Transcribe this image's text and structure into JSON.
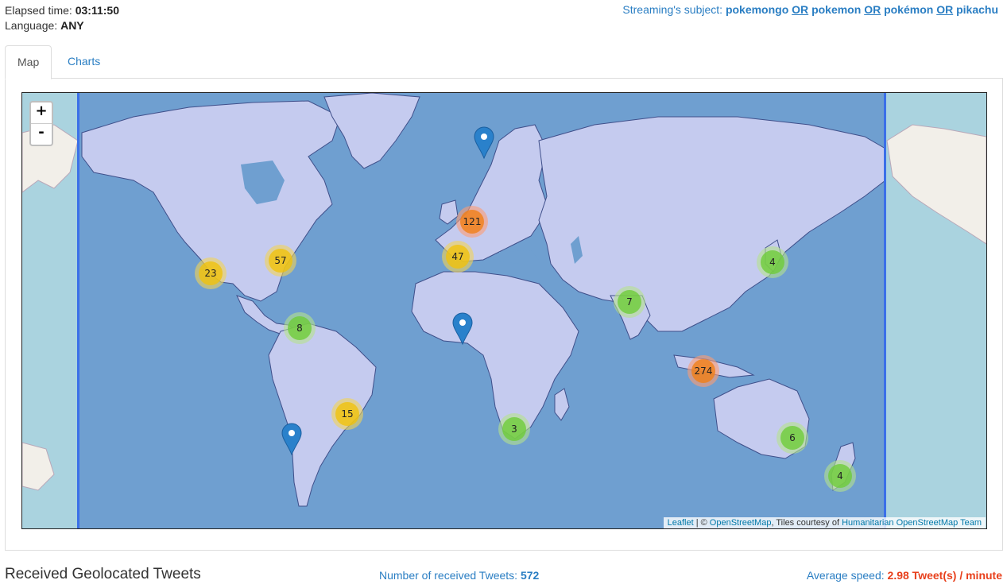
{
  "header": {
    "elapsed_label": "Elapsed time:",
    "elapsed_value": "03:11:50",
    "language_label": "Language:",
    "language_value": "ANY",
    "subject_label": "Streaming's subject:",
    "subject_terms": [
      "pokemongo",
      "pokemon",
      "pokémon",
      "pikachu"
    ],
    "subject_or": "OR"
  },
  "tabs": {
    "map": "Map",
    "charts": "Charts"
  },
  "map": {
    "zoom_in": "+",
    "zoom_out": "-",
    "attribution": {
      "leaflet": "Leaflet",
      "sep": "| ©",
      "osm": "OpenStreetMap",
      "tiles": ", Tiles courtesy of",
      "hot": "Humanitarian OpenStreetMap Team"
    },
    "clusters": [
      {
        "count": "121",
        "level": "large"
      },
      {
        "count": "57",
        "level": "medium"
      },
      {
        "count": "47",
        "level": "medium"
      },
      {
        "count": "23",
        "level": "medium"
      },
      {
        "count": "8",
        "level": "small"
      },
      {
        "count": "7",
        "level": "small"
      },
      {
        "count": "4",
        "level": "small"
      },
      {
        "count": "274",
        "level": "large"
      },
      {
        "count": "15",
        "level": "medium"
      },
      {
        "count": "3",
        "level": "small"
      },
      {
        "count": "6",
        "level": "small"
      },
      {
        "count": "4",
        "level": "small"
      }
    ],
    "colors": {
      "ocean": "#aad3df",
      "overlay": "#6f9fd0",
      "land": "#c5cbef",
      "border": "#3f4f8a",
      "cluster_small": "#6ecc39",
      "cluster_medium": "#f0c20c",
      "cluster_large": "#f18017",
      "marker": "#2a81cb"
    }
  },
  "footer": {
    "title": "Received Geolocated Tweets",
    "count_label": "Number of received Tweets:",
    "count_value": "572",
    "speed_label": "Average speed:",
    "speed_value": "2.98 Tweet(s) / minute"
  }
}
